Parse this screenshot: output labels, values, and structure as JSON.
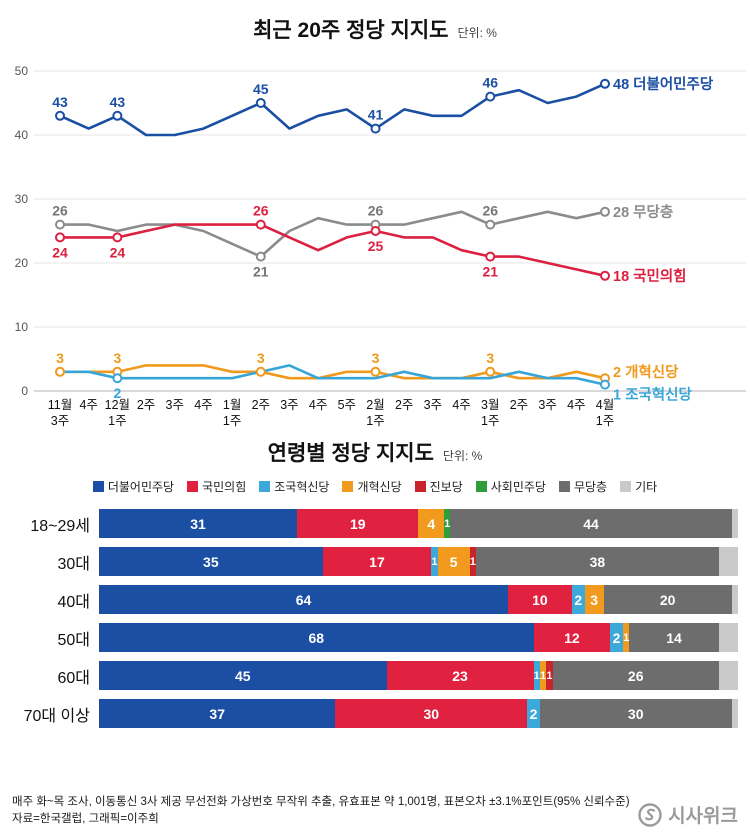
{
  "chart_data": [
    {
      "type": "line",
      "title": "최근 20주 정당 지지도",
      "unit": "단위: %",
      "ylim": [
        0,
        50
      ],
      "y_ticks": [
        50,
        40,
        30,
        20,
        10,
        0
      ],
      "grid": true,
      "x": [
        "11월|3주",
        "4주",
        "12월|1주",
        "2주",
        "3주",
        "4주",
        "1월|1주",
        "2주",
        "3주",
        "4주",
        "5주",
        "2월|1주",
        "2주",
        "3주",
        "4주",
        "3월|1주",
        "2주",
        "3주",
        "4주",
        "4월|1주"
      ],
      "series": [
        {
          "id": "reform-party",
          "name": "개혁신당",
          "color": "#f0991d",
          "values": [
            3,
            3,
            3,
            4,
            4,
            4,
            3,
            3,
            2,
            2,
            3,
            3,
            2,
            2,
            2,
            3,
            2,
            2,
            3,
            2
          ],
          "end_label": "2  개혁신당",
          "end_dy": -1,
          "point_labels": [
            {
              "i": 0,
              "pos": "above"
            },
            {
              "i": 2,
              "pos": "above"
            },
            {
              "i": 7,
              "pos": "above"
            },
            {
              "i": 11,
              "pos": "above"
            },
            {
              "i": 15,
              "pos": "above"
            }
          ]
        },
        {
          "id": "rebuilding-korea-party",
          "name": "조국혁신당",
          "color": "#38a5d8",
          "values": [
            3,
            3,
            2,
            2,
            2,
            2,
            2,
            3,
            4,
            2,
            2,
            2,
            3,
            2,
            2,
            2,
            3,
            2,
            2,
            1
          ],
          "end_label": "1  조국혁신당",
          "end_dy": 15,
          "point_labels": [
            {
              "i": 2,
              "pos": "below"
            }
          ]
        },
        {
          "id": "unaffiliated",
          "name": "무당층",
          "color": "#8b8b8b",
          "label_color": "#767676",
          "values": [
            26,
            26,
            25,
            26,
            26,
            25,
            23,
            21,
            25,
            27,
            26,
            26,
            26,
            27,
            28,
            26,
            27,
            28,
            27,
            28
          ],
          "end_label": "28 무당층",
          "end_dy": 5,
          "point_labels": [
            {
              "i": 0,
              "pos": "above"
            },
            {
              "i": 7,
              "pos": "below"
            },
            {
              "i": 11,
              "pos": "above"
            },
            {
              "i": 15,
              "pos": "above"
            }
          ]
        },
        {
          "id": "people-power-party",
          "name": "국민의힘",
          "color": "#dc2040",
          "values": [
            24,
            24,
            24,
            25,
            26,
            26,
            26,
            26,
            24,
            22,
            24,
            25,
            24,
            24,
            22,
            21,
            21,
            20,
            19,
            18
          ],
          "end_label": "18 국민의힘",
          "end_dy": 5,
          "point_labels": [
            {
              "i": 0,
              "pos": "below"
            },
            {
              "i": 2,
              "pos": "below"
            },
            {
              "i": 7,
              "pos": "above"
            },
            {
              "i": 11,
              "pos": "below"
            },
            {
              "i": 15,
              "pos": "below"
            }
          ]
        },
        {
          "id": "democratic-party",
          "name": "더불어민주당",
          "color": "#1a4fa3",
          "values": [
            43,
            41,
            43,
            40,
            40,
            41,
            43,
            45,
            41,
            43,
            44,
            41,
            44,
            43,
            43,
            46,
            47,
            45,
            46,
            48
          ],
          "end_label": "48 더불어민주당",
          "end_dy": 5,
          "point_labels": [
            {
              "i": 0,
              "pos": "above"
            },
            {
              "i": 2,
              "pos": "above"
            },
            {
              "i": 7,
              "pos": "above"
            },
            {
              "i": 11,
              "pos": "above"
            },
            {
              "i": 15,
              "pos": "above"
            }
          ]
        }
      ]
    },
    {
      "type": "bar",
      "orientation": "horizontal-stacked",
      "title": "연령별 정당 지지도",
      "unit": "단위: %",
      "categories": [
        "18~29세",
        "30대",
        "40대",
        "50대",
        "60대",
        "70대 이상"
      ],
      "series": [
        {
          "id": "democratic-party",
          "name": "더불어민주당",
          "color": "#1a4fa3",
          "show_value": true
        },
        {
          "id": "people-power-party",
          "name": "국민의힘",
          "color": "#e0213f",
          "show_value": true
        },
        {
          "id": "rebuilding-korea-party",
          "name": "조국혁신당",
          "color": "#3ba9d9",
          "show_value": true
        },
        {
          "id": "reform-party",
          "name": "개혁신당",
          "color": "#f29a1e",
          "show_value": true
        },
        {
          "id": "progressive-party",
          "name": "진보당",
          "color": "#c9242b",
          "show_value": true
        },
        {
          "id": "social-democratic-party",
          "name": "사회민주당",
          "color": "#2e9e3a",
          "show_value": true
        },
        {
          "id": "unaffiliated",
          "name": "무당층",
          "color": "#6d6d6d",
          "show_value": true
        },
        {
          "id": "others",
          "name": "기타",
          "color": "#c9c9c9",
          "show_value": false
        }
      ],
      "rows": [
        {
          "label": "18~29세",
          "values": [
            31,
            19,
            0,
            4,
            0,
            1,
            44,
            1
          ]
        },
        {
          "label": "30대",
          "values": [
            35,
            17,
            1,
            5,
            1,
            0,
            38,
            3
          ]
        },
        {
          "label": "40대",
          "values": [
            64,
            10,
            2,
            3,
            0,
            0,
            20,
            1
          ]
        },
        {
          "label": "50대",
          "values": [
            68,
            12,
            2,
            1,
            0,
            0,
            14,
            3
          ]
        },
        {
          "label": "60대",
          "values": [
            45,
            23,
            1,
            1,
            1,
            0,
            26,
            3
          ]
        },
        {
          "label": "70대 이상",
          "values": [
            37,
            30,
            2,
            0,
            0,
            0,
            30,
            1
          ]
        }
      ]
    }
  ],
  "footer": {
    "line1": "매주 화~목 조사, 이동통신 3사 제공 무선전화 가상번호 무작위 추출, 유효표본 약 1,001명, 표본오차 ±3.1%포인트(95% 신뢰수준)",
    "line2": "자료=한국갤럽, 그래픽=이주희",
    "logo_text": "시사위크"
  }
}
